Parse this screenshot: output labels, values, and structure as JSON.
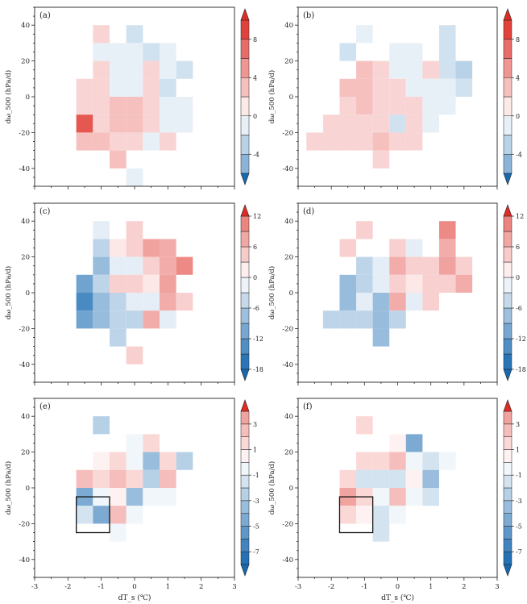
{
  "figure": {
    "xlabel": "dT_s (℃)",
    "ylabel": "dω_500 (hPa/d)",
    "xticks": [
      -3,
      -2,
      -1,
      0,
      1,
      2,
      3
    ],
    "yticks": [
      -40,
      -20,
      0,
      20,
      40
    ]
  },
  "chart_data": [
    {
      "type": "heatmap",
      "label": "(a)",
      "xlim": [
        -3,
        3
      ],
      "ylim": [
        -50,
        50
      ],
      "bin_x": 0.5,
      "bin_y": 10,
      "colorbar": {
        "ticks": [
          -4,
          0,
          4,
          8
        ],
        "levels": [
          -6,
          -4,
          -2,
          0,
          2,
          4,
          6,
          8,
          10
        ]
      },
      "cells": [
        {
          "x": -1.0,
          "y": 35,
          "v": 2
        },
        {
          "x": 0.0,
          "y": 35,
          "v": -2
        },
        {
          "x": -1.0,
          "y": 25,
          "v": -1
        },
        {
          "x": -0.5,
          "y": 25,
          "v": -1
        },
        {
          "x": 0.0,
          "y": 25,
          "v": -1
        },
        {
          "x": 0.5,
          "y": 25,
          "v": -2
        },
        {
          "x": 1.0,
          "y": 25,
          "v": -1
        },
        {
          "x": -1.0,
          "y": 15,
          "v": 2
        },
        {
          "x": -0.5,
          "y": 15,
          "v": -1
        },
        {
          "x": 0.0,
          "y": 15,
          "v": -1
        },
        {
          "x": 0.5,
          "y": 15,
          "v": 2
        },
        {
          "x": 1.0,
          "y": 15,
          "v": -1
        },
        {
          "x": 1.5,
          "y": 15,
          "v": -2
        },
        {
          "x": -1.5,
          "y": 5,
          "v": 2
        },
        {
          "x": -1.0,
          "y": 5,
          "v": 2
        },
        {
          "x": -0.5,
          "y": 5,
          "v": -1
        },
        {
          "x": 0.0,
          "y": 5,
          "v": -1
        },
        {
          "x": 0.5,
          "y": 5,
          "v": 2
        },
        {
          "x": 1.0,
          "y": 5,
          "v": -2
        },
        {
          "x": -1.5,
          "y": -5,
          "v": 2
        },
        {
          "x": -1.0,
          "y": -5,
          "v": 2
        },
        {
          "x": -0.5,
          "y": -5,
          "v": 3
        },
        {
          "x": 0.0,
          "y": -5,
          "v": 3
        },
        {
          "x": 0.5,
          "y": -5,
          "v": 2
        },
        {
          "x": 1.0,
          "y": -5,
          "v": -1
        },
        {
          "x": 1.5,
          "y": -5,
          "v": -1
        },
        {
          "x": -1.5,
          "y": -15,
          "v": 8
        },
        {
          "x": -1.0,
          "y": -15,
          "v": 2
        },
        {
          "x": -0.5,
          "y": -15,
          "v": 3
        },
        {
          "x": 0.0,
          "y": -15,
          "v": 3
        },
        {
          "x": 0.5,
          "y": -15,
          "v": 2
        },
        {
          "x": 1.0,
          "y": -15,
          "v": -1
        },
        {
          "x": 1.5,
          "y": -15,
          "v": -1
        },
        {
          "x": -1.5,
          "y": -25,
          "v": 3
        },
        {
          "x": -1.0,
          "y": -25,
          "v": 3
        },
        {
          "x": -0.5,
          "y": -25,
          "v": 2
        },
        {
          "x": 0.0,
          "y": -25,
          "v": 2
        },
        {
          "x": 0.5,
          "y": -25,
          "v": -1
        },
        {
          "x": 1.0,
          "y": -25,
          "v": 2
        },
        {
          "x": -0.5,
          "y": -35,
          "v": 3
        },
        {
          "x": 0.0,
          "y": -45,
          "v": -1
        }
      ]
    },
    {
      "type": "heatmap",
      "label": "(b)",
      "xlim": [
        -3,
        3
      ],
      "ylim": [
        -50,
        50
      ],
      "bin_x": 0.5,
      "bin_y": 10,
      "colorbar": {
        "ticks": [
          -4,
          0,
          4,
          8
        ],
        "levels": [
          -6,
          -4,
          -2,
          0,
          2,
          4,
          6,
          8,
          10
        ]
      },
      "cells": [
        {
          "x": -1.0,
          "y": 35,
          "v": -1
        },
        {
          "x": 1.5,
          "y": 35,
          "v": -2
        },
        {
          "x": -1.5,
          "y": 25,
          "v": -2
        },
        {
          "x": 0.0,
          "y": 25,
          "v": -1
        },
        {
          "x": 0.5,
          "y": 25,
          "v": -1
        },
        {
          "x": 1.5,
          "y": 25,
          "v": -2
        },
        {
          "x": -1.0,
          "y": 15,
          "v": 3
        },
        {
          "x": -0.5,
          "y": 15,
          "v": 2
        },
        {
          "x": 0.0,
          "y": 15,
          "v": -1
        },
        {
          "x": 0.5,
          "y": 15,
          "v": -1
        },
        {
          "x": 1.0,
          "y": 15,
          "v": 2
        },
        {
          "x": 1.5,
          "y": 15,
          "v": -2
        },
        {
          "x": 2.0,
          "y": 15,
          "v": -3
        },
        {
          "x": -1.5,
          "y": 5,
          "v": 3
        },
        {
          "x": -1.0,
          "y": 5,
          "v": 3
        },
        {
          "x": -0.5,
          "y": 5,
          "v": 2
        },
        {
          "x": 0.0,
          "y": 5,
          "v": 2
        },
        {
          "x": 0.5,
          "y": 5,
          "v": -1
        },
        {
          "x": 1.0,
          "y": 5,
          "v": -1
        },
        {
          "x": 1.5,
          "y": 5,
          "v": -1
        },
        {
          "x": 2.0,
          "y": 5,
          "v": -2
        },
        {
          "x": -1.5,
          "y": -5,
          "v": 2
        },
        {
          "x": -1.0,
          "y": -5,
          "v": 3
        },
        {
          "x": -0.5,
          "y": -5,
          "v": 2
        },
        {
          "x": 0.0,
          "y": -5,
          "v": 2
        },
        {
          "x": 0.5,
          "y": -5,
          "v": 2
        },
        {
          "x": 1.0,
          "y": -5,
          "v": -1
        },
        {
          "x": 1.5,
          "y": -5,
          "v": -1
        },
        {
          "x": -2.0,
          "y": -15,
          "v": 2
        },
        {
          "x": -1.5,
          "y": -15,
          "v": 2
        },
        {
          "x": -1.0,
          "y": -15,
          "v": 2
        },
        {
          "x": -0.5,
          "y": -15,
          "v": 2
        },
        {
          "x": 0.0,
          "y": -15,
          "v": -2
        },
        {
          "x": 0.5,
          "y": -15,
          "v": 2
        },
        {
          "x": 1.0,
          "y": -15,
          "v": -1
        },
        {
          "x": -2.5,
          "y": -25,
          "v": 2
        },
        {
          "x": -2.0,
          "y": -25,
          "v": 2
        },
        {
          "x": -1.5,
          "y": -25,
          "v": 2
        },
        {
          "x": -1.0,
          "y": -25,
          "v": 2
        },
        {
          "x": -0.5,
          "y": -25,
          "v": 3
        },
        {
          "x": 0.0,
          "y": -25,
          "v": 2
        },
        {
          "x": 0.5,
          "y": -25,
          "v": 2
        },
        {
          "x": -0.5,
          "y": -35,
          "v": 2
        }
      ]
    },
    {
      "type": "heatmap",
      "label": "(c)",
      "xlim": [
        -3,
        3
      ],
      "ylim": [
        -50,
        50
      ],
      "bin_x": 0.5,
      "bin_y": 10,
      "colorbar": {
        "ticks": [
          -18,
          -12,
          -6,
          0,
          6,
          12
        ],
        "levels": [
          -18,
          -15,
          -12,
          -9,
          -6,
          -3,
          0,
          3,
          6,
          9,
          12
        ]
      },
      "cells": [
        {
          "x": -1.0,
          "y": 35,
          "v": -2
        },
        {
          "x": 0.0,
          "y": 35,
          "v": 4
        },
        {
          "x": -1.0,
          "y": 25,
          "v": -5
        },
        {
          "x": -0.5,
          "y": 25,
          "v": 2
        },
        {
          "x": 0.0,
          "y": 25,
          "v": 4
        },
        {
          "x": 0.5,
          "y": 25,
          "v": 8
        },
        {
          "x": 1.0,
          "y": 25,
          "v": 7
        },
        {
          "x": -1.0,
          "y": 15,
          "v": -8
        },
        {
          "x": -0.5,
          "y": 15,
          "v": -2
        },
        {
          "x": 0.0,
          "y": 15,
          "v": -2
        },
        {
          "x": 0.5,
          "y": 15,
          "v": 4
        },
        {
          "x": 1.0,
          "y": 15,
          "v": 7
        },
        {
          "x": 1.5,
          "y": 15,
          "v": 10
        },
        {
          "x": -1.5,
          "y": 5,
          "v": -11
        },
        {
          "x": -1.0,
          "y": 5,
          "v": -5
        },
        {
          "x": -0.5,
          "y": 5,
          "v": 4
        },
        {
          "x": 0.0,
          "y": 5,
          "v": 4
        },
        {
          "x": 0.5,
          "y": 5,
          "v": 2
        },
        {
          "x": 1.0,
          "y": 5,
          "v": 8
        },
        {
          "x": -1.5,
          "y": -5,
          "v": -14
        },
        {
          "x": -1.0,
          "y": -5,
          "v": -8
        },
        {
          "x": -0.5,
          "y": -5,
          "v": -5
        },
        {
          "x": 0.0,
          "y": -5,
          "v": -2
        },
        {
          "x": 0.5,
          "y": -5,
          "v": -2
        },
        {
          "x": 1.0,
          "y": -5,
          "v": 7
        },
        {
          "x": 1.5,
          "y": -5,
          "v": 4
        },
        {
          "x": -1.5,
          "y": -15,
          "v": -11
        },
        {
          "x": -1.0,
          "y": -15,
          "v": -8
        },
        {
          "x": -0.5,
          "y": -15,
          "v": -5
        },
        {
          "x": 0.0,
          "y": -15,
          "v": -5
        },
        {
          "x": 0.5,
          "y": -15,
          "v": 7
        },
        {
          "x": 1.0,
          "y": -15,
          "v": -2
        },
        {
          "x": -0.5,
          "y": -25,
          "v": -5
        },
        {
          "x": 0.0,
          "y": -35,
          "v": 4
        }
      ]
    },
    {
      "type": "heatmap",
      "label": "(d)",
      "xlim": [
        -3,
        3
      ],
      "ylim": [
        -50,
        50
      ],
      "bin_x": 0.5,
      "bin_y": 10,
      "colorbar": {
        "ticks": [
          -18,
          -12,
          -6,
          0,
          6,
          12
        ],
        "levels": [
          -18,
          -15,
          -12,
          -9,
          -6,
          -3,
          0,
          3,
          6,
          9,
          12
        ]
      },
      "cells": [
        {
          "x": -1.0,
          "y": 35,
          "v": 4
        },
        {
          "x": 1.5,
          "y": 35,
          "v": 10
        },
        {
          "x": -1.5,
          "y": 25,
          "v": 4
        },
        {
          "x": 0.0,
          "y": 25,
          "v": 4
        },
        {
          "x": 0.5,
          "y": 25,
          "v": -2
        },
        {
          "x": 1.5,
          "y": 25,
          "v": 7
        },
        {
          "x": -1.0,
          "y": 15,
          "v": -5
        },
        {
          "x": -0.5,
          "y": 15,
          "v": -2
        },
        {
          "x": 0.0,
          "y": 15,
          "v": 7
        },
        {
          "x": 0.5,
          "y": 15,
          "v": 4
        },
        {
          "x": 1.0,
          "y": 15,
          "v": 4
        },
        {
          "x": 1.5,
          "y": 15,
          "v": 8
        },
        {
          "x": 2.0,
          "y": 15,
          "v": 4
        },
        {
          "x": -1.5,
          "y": 5,
          "v": -8
        },
        {
          "x": -1.0,
          "y": 5,
          "v": -5
        },
        {
          "x": -0.5,
          "y": 5,
          "v": -2
        },
        {
          "x": 0.0,
          "y": 5,
          "v": 4
        },
        {
          "x": 0.5,
          "y": 5,
          "v": 2
        },
        {
          "x": 1.0,
          "y": 5,
          "v": 4
        },
        {
          "x": 1.5,
          "y": 5,
          "v": 4
        },
        {
          "x": 2.0,
          "y": 5,
          "v": 7
        },
        {
          "x": -1.5,
          "y": -5,
          "v": -8
        },
        {
          "x": -1.0,
          "y": -5,
          "v": -2
        },
        {
          "x": -0.5,
          "y": -5,
          "v": -8
        },
        {
          "x": 0.0,
          "y": -5,
          "v": 7
        },
        {
          "x": 0.5,
          "y": -5,
          "v": -2
        },
        {
          "x": 1.0,
          "y": -5,
          "v": 4
        },
        {
          "x": -2.0,
          "y": -15,
          "v": -5
        },
        {
          "x": -1.5,
          "y": -15,
          "v": -5
        },
        {
          "x": -1.0,
          "y": -15,
          "v": -5
        },
        {
          "x": -0.5,
          "y": -15,
          "v": -8
        },
        {
          "x": 0.0,
          "y": -15,
          "v": -5
        },
        {
          "x": -0.5,
          "y": -25,
          "v": -8
        }
      ]
    },
    {
      "type": "heatmap",
      "label": "(e)",
      "xlim": [
        -3,
        3
      ],
      "ylim": [
        -50,
        50
      ],
      "bin_x": 0.5,
      "bin_y": 10,
      "colorbar": {
        "ticks": [
          -7,
          -5,
          -3,
          -1,
          1,
          3
        ],
        "levels": [
          -8,
          -7,
          -6,
          -5,
          -4,
          -3,
          -2,
          -1,
          0,
          1,
          2,
          3,
          4
        ]
      },
      "highlight_box": {
        "x": [
          -1.75,
          -0.75
        ],
        "y": [
          -25,
          -5
        ]
      },
      "cells": [
        {
          "x": -1.0,
          "y": 35,
          "v": -2.5
        },
        {
          "x": 0.0,
          "y": 25,
          "v": -0.5
        },
        {
          "x": 0.5,
          "y": 25,
          "v": 1.5
        },
        {
          "x": -1.0,
          "y": 15,
          "v": 0.5
        },
        {
          "x": -0.5,
          "y": 15,
          "v": 1.5
        },
        {
          "x": 0.0,
          "y": 15,
          "v": -0.5
        },
        {
          "x": 0.5,
          "y": 15,
          "v": -3.5
        },
        {
          "x": 1.0,
          "y": 15,
          "v": 1.5
        },
        {
          "x": 1.5,
          "y": 15,
          "v": -2.5
        },
        {
          "x": -1.5,
          "y": 5,
          "v": 2.5
        },
        {
          "x": -1.0,
          "y": 5,
          "v": 1.5
        },
        {
          "x": -0.5,
          "y": 5,
          "v": 2.5
        },
        {
          "x": 0.0,
          "y": 5,
          "v": 1.5
        },
        {
          "x": 0.5,
          "y": 5,
          "v": -2.5
        },
        {
          "x": 1.0,
          "y": 5,
          "v": 2.5
        },
        {
          "x": -1.5,
          "y": -5,
          "v": -4.5
        },
        {
          "x": -1.0,
          "y": -5,
          "v": -0.5
        },
        {
          "x": -0.5,
          "y": -5,
          "v": 0.5
        },
        {
          "x": 0.0,
          "y": -5,
          "v": -3.5
        },
        {
          "x": 0.5,
          "y": -5,
          "v": -0.5
        },
        {
          "x": 1.0,
          "y": -5,
          "v": -0.5
        },
        {
          "x": -1.5,
          "y": -15,
          "v": -1.5
        },
        {
          "x": -1.0,
          "y": -15,
          "v": -4.5
        },
        {
          "x": -0.5,
          "y": -15,
          "v": 2.5
        },
        {
          "x": 0.0,
          "y": -15,
          "v": -0.5
        },
        {
          "x": -0.5,
          "y": -25,
          "v": -0.5
        }
      ]
    },
    {
      "type": "heatmap",
      "label": "(f)",
      "xlim": [
        -3,
        3
      ],
      "ylim": [
        -50,
        50
      ],
      "bin_x": 0.5,
      "bin_y": 10,
      "colorbar": {
        "ticks": [
          -7,
          -5,
          -3,
          -1,
          1,
          3
        ],
        "levels": [
          -8,
          -7,
          -6,
          -5,
          -4,
          -3,
          -2,
          -1,
          0,
          1,
          2,
          3,
          4
        ]
      },
      "highlight_box": {
        "x": [
          -1.75,
          -0.75
        ],
        "y": [
          -25,
          -5
        ]
      },
      "cells": [
        {
          "x": -1.0,
          "y": 35,
          "v": 1.5
        },
        {
          "x": 0.0,
          "y": 25,
          "v": 0.5
        },
        {
          "x": 0.5,
          "y": 25,
          "v": -4.5
        },
        {
          "x": -1.0,
          "y": 15,
          "v": 1.5
        },
        {
          "x": -0.5,
          "y": 15,
          "v": 1.5
        },
        {
          "x": 0.0,
          "y": 15,
          "v": 2.5
        },
        {
          "x": 0.5,
          "y": 15,
          "v": -0.5
        },
        {
          "x": 1.0,
          "y": 15,
          "v": -1.5
        },
        {
          "x": 1.5,
          "y": 15,
          "v": -0.5
        },
        {
          "x": -1.5,
          "y": 5,
          "v": 1.5
        },
        {
          "x": -1.0,
          "y": 5,
          "v": -1.5
        },
        {
          "x": -0.5,
          "y": 5,
          "v": -1.5
        },
        {
          "x": 0.0,
          "y": 5,
          "v": -1.5
        },
        {
          "x": 0.5,
          "y": 5,
          "v": 0.5
        },
        {
          "x": 1.0,
          "y": 5,
          "v": -3.5
        },
        {
          "x": -1.5,
          "y": -5,
          "v": 3.5
        },
        {
          "x": -1.0,
          "y": -5,
          "v": 1.5
        },
        {
          "x": -0.5,
          "y": -5,
          "v": -0.5
        },
        {
          "x": 0.0,
          "y": -5,
          "v": 2.5
        },
        {
          "x": 0.5,
          "y": -5,
          "v": -0.5
        },
        {
          "x": 1.0,
          "y": -5,
          "v": -1.5
        },
        {
          "x": -1.5,
          "y": -15,
          "v": 1.5
        },
        {
          "x": -1.0,
          "y": -15,
          "v": 0.5
        },
        {
          "x": -0.5,
          "y": -15,
          "v": -1.5
        },
        {
          "x": 0.0,
          "y": -15,
          "v": -0.5
        },
        {
          "x": -0.5,
          "y": -25,
          "v": -1.5
        }
      ]
    }
  ]
}
